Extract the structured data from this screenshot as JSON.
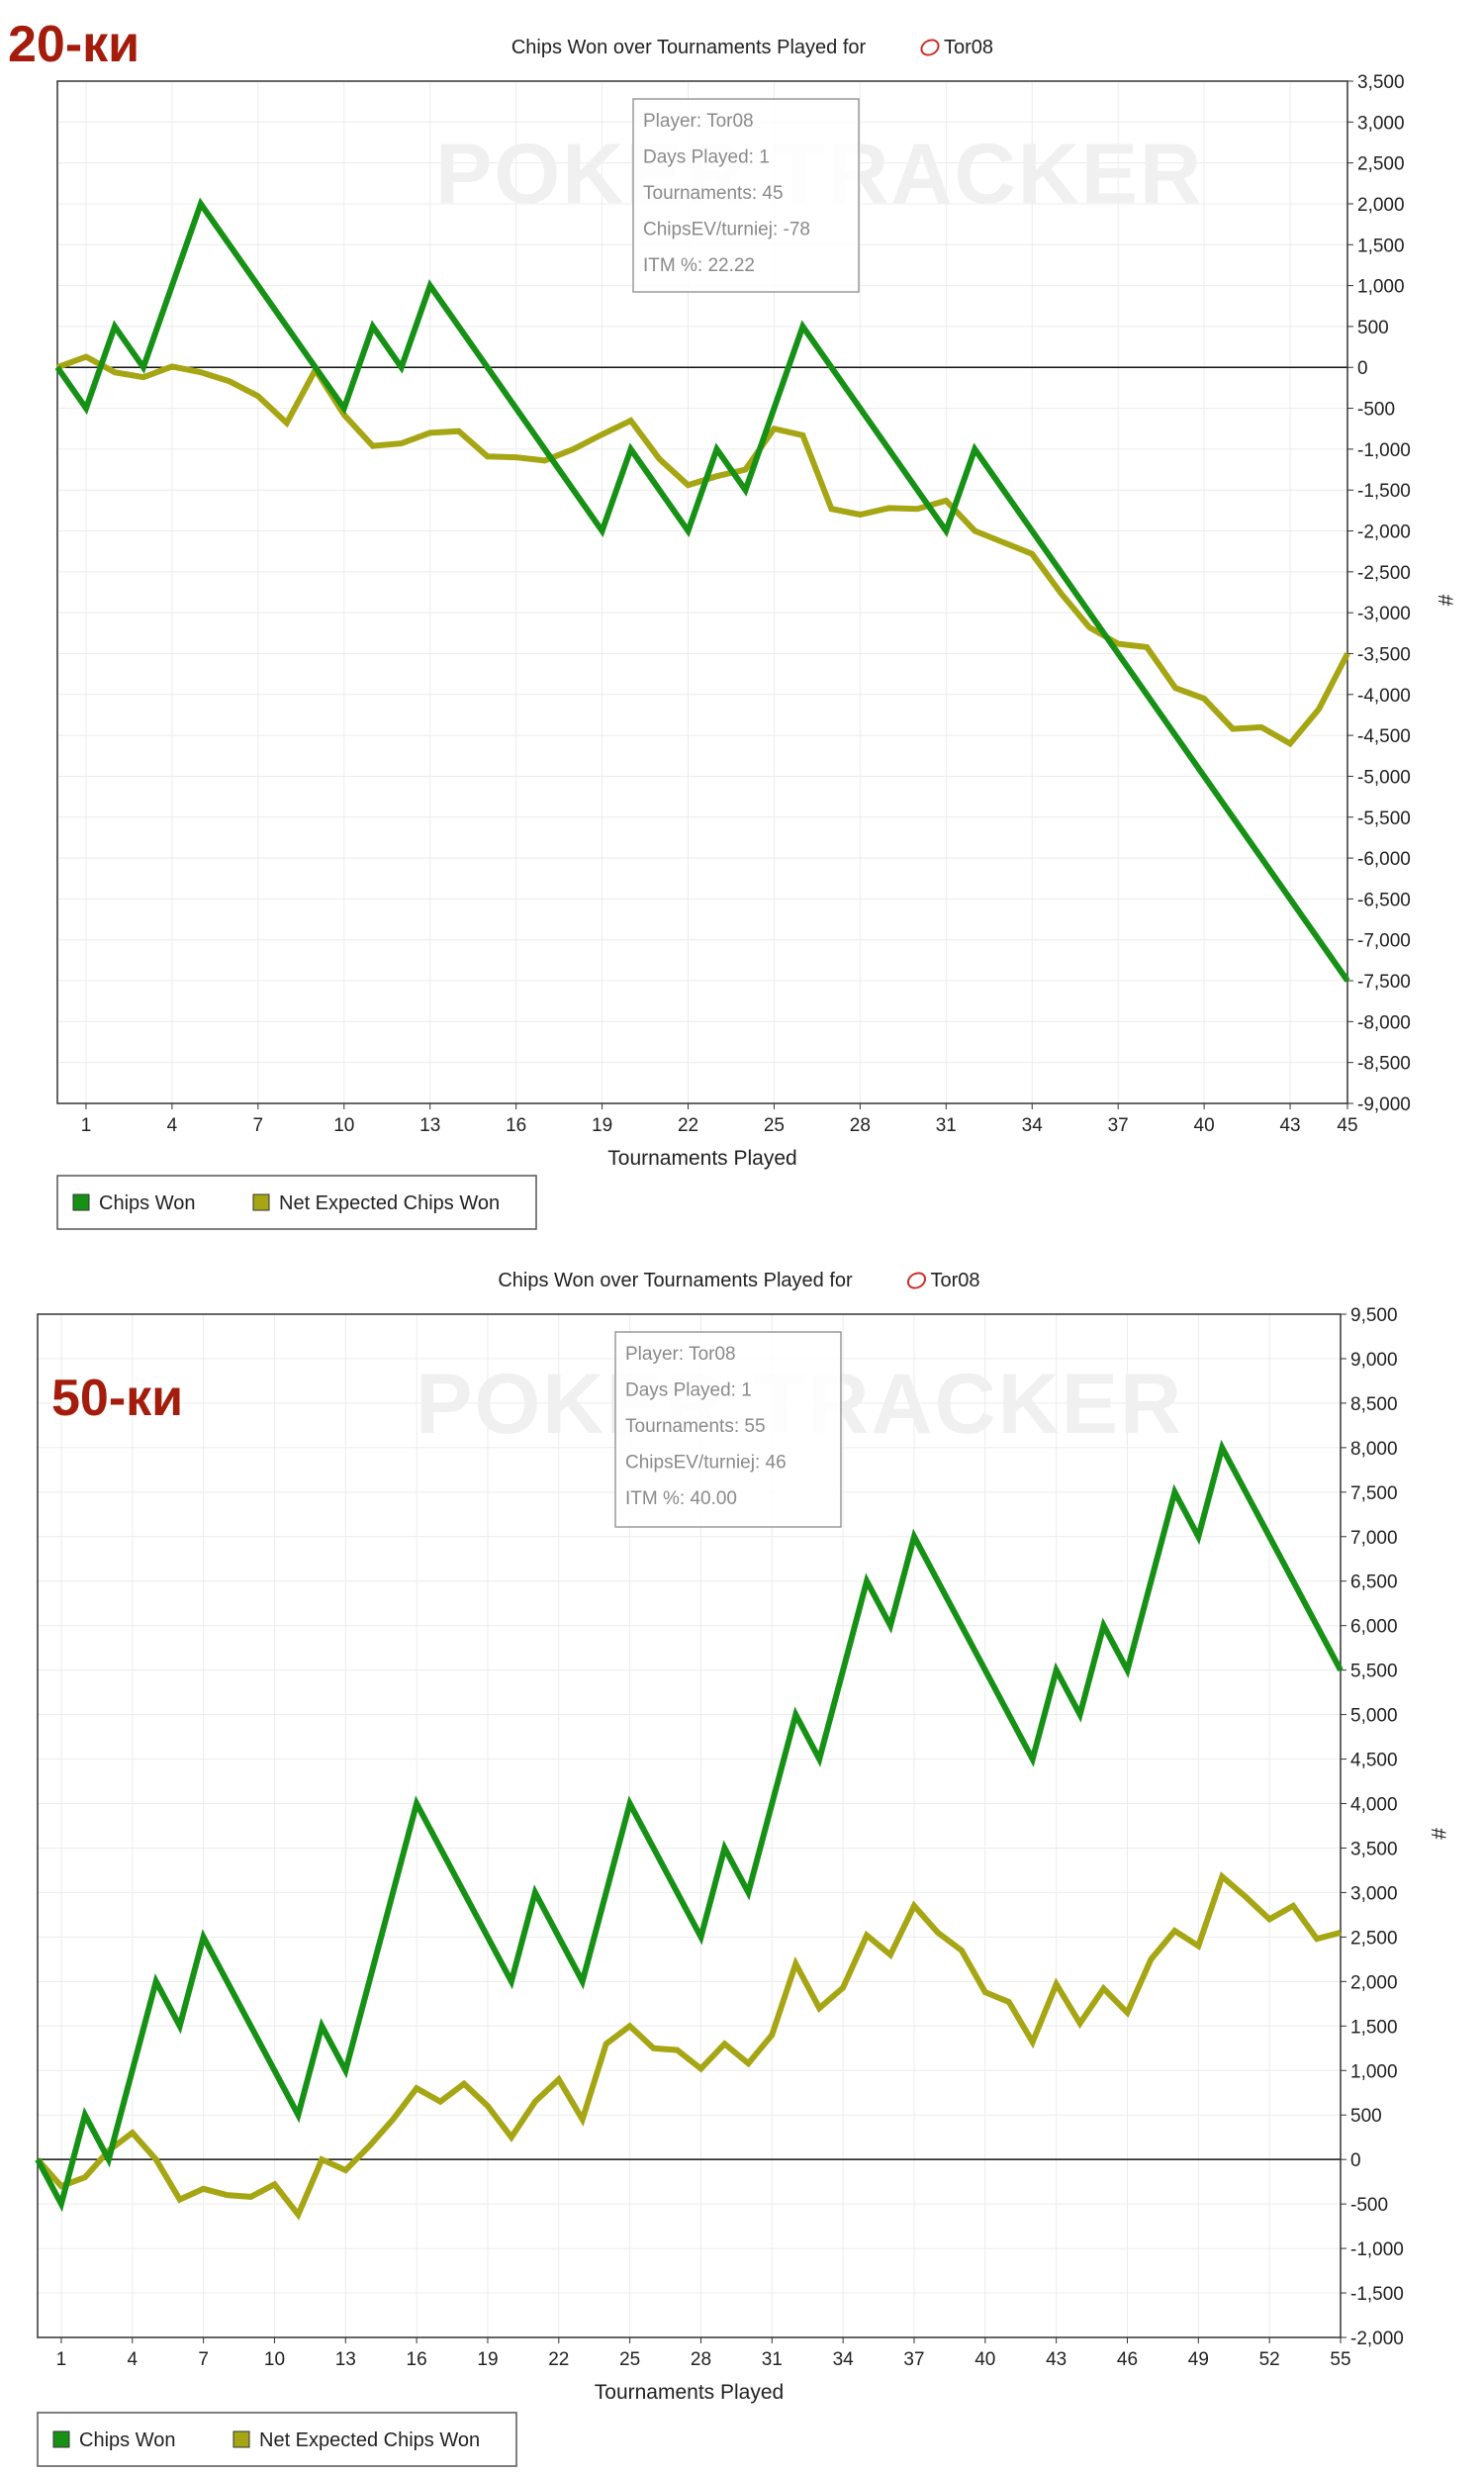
{
  "chart_data": [
    {
      "type": "line",
      "corner_label": "20-ки",
      "title": "Chips Won over Tournaments Played for",
      "player_name": "Tor08",
      "xlabel": "Tournaments Played",
      "ylabel": "#",
      "watermark": "POKER TRACKER",
      "xlim": [
        0,
        45
      ],
      "xticks": [
        1,
        4,
        7,
        10,
        13,
        16,
        19,
        22,
        25,
        28,
        31,
        34,
        37,
        40,
        43,
        45
      ],
      "ylim": [
        -9000,
        3500
      ],
      "ytick_step": 500,
      "grid": true,
      "legend_position": "bottom-left",
      "tooltip": {
        "lines": [
          "Player: Tor08",
          "Days Played: 1",
          "Tournaments: 45",
          "ChipsEV/turniej: -78",
          "ITM %: 22.22"
        ]
      },
      "series": [
        {
          "name": "Chips Won",
          "color": "#169116",
          "points": [
            [
              0,
              0
            ],
            [
              1,
              -500
            ],
            [
              2,
              500
            ],
            [
              3,
              0
            ],
            [
              5,
              2000
            ],
            [
              10,
              -500
            ],
            [
              11,
              500
            ],
            [
              12,
              0
            ],
            [
              13,
              1000
            ],
            [
              19,
              -2000
            ],
            [
              20,
              -1000
            ],
            [
              22,
              -2000
            ],
            [
              23,
              -1000
            ],
            [
              24,
              -1500
            ],
            [
              26,
              500
            ],
            [
              31,
              -2000
            ],
            [
              32,
              -1000
            ],
            [
              45,
              -7500
            ]
          ]
        },
        {
          "name": "Net Expected Chips Won",
          "color": "#a6a614",
          "points": [
            [
              0,
              0
            ],
            [
              1,
              130
            ],
            [
              2,
              -60
            ],
            [
              3,
              -120
            ],
            [
              4,
              10
            ],
            [
              5,
              -60
            ],
            [
              6,
              -170
            ],
            [
              7,
              -350
            ],
            [
              8,
              -680
            ],
            [
              9,
              -30
            ],
            [
              10,
              -580
            ],
            [
              11,
              -960
            ],
            [
              12,
              -930
            ],
            [
              13,
              -800
            ],
            [
              14,
              -780
            ],
            [
              15,
              -1090
            ],
            [
              16,
              -1100
            ],
            [
              17,
              -1140
            ],
            [
              18,
              -1000
            ],
            [
              19,
              -820
            ],
            [
              20,
              -650
            ],
            [
              21,
              -1120
            ],
            [
              22,
              -1440
            ],
            [
              23,
              -1330
            ],
            [
              24,
              -1250
            ],
            [
              25,
              -750
            ],
            [
              26,
              -830
            ],
            [
              27,
              -1730
            ],
            [
              28,
              -1800
            ],
            [
              29,
              -1720
            ],
            [
              30,
              -1730
            ],
            [
              31,
              -1630
            ],
            [
              32,
              -2000
            ],
            [
              33,
              -2140
            ],
            [
              34,
              -2280
            ],
            [
              35,
              -2760
            ],
            [
              36,
              -3180
            ],
            [
              37,
              -3380
            ],
            [
              38,
              -3420
            ],
            [
              39,
              -3920
            ],
            [
              40,
              -4050
            ],
            [
              41,
              -4420
            ],
            [
              42,
              -4400
            ],
            [
              43,
              -4600
            ],
            [
              44,
              -4180
            ],
            [
              45,
              -3500
            ]
          ]
        }
      ]
    },
    {
      "type": "line",
      "corner_label": "50-ки",
      "title": "Chips Won over Tournaments Played for",
      "player_name": "Tor08",
      "xlabel": "Tournaments Played",
      "ylabel": "#",
      "watermark": "POKER TRACKER",
      "xlim": [
        0,
        55
      ],
      "xticks": [
        1,
        4,
        7,
        10,
        13,
        16,
        19,
        22,
        25,
        28,
        31,
        34,
        37,
        40,
        43,
        46,
        49,
        52,
        55
      ],
      "ylim": [
        -2000,
        9500
      ],
      "ytick_step": 500,
      "grid": true,
      "legend_position": "bottom-left",
      "tooltip": {
        "lines": [
          "Player: Tor08",
          "Days Played: 1",
          "Tournaments: 55",
          "ChipsEV/turniej: 46",
          "ITM %: 40.00"
        ]
      },
      "series": [
        {
          "name": "Chips Won",
          "color": "#169116",
          "points": [
            [
              0,
              0
            ],
            [
              1,
              -500
            ],
            [
              2,
              500
            ],
            [
              3,
              0
            ],
            [
              5,
              2000
            ],
            [
              6,
              1500
            ],
            [
              7,
              2500
            ],
            [
              11,
              500
            ],
            [
              12,
              1500
            ],
            [
              13,
              1000
            ],
            [
              16,
              4000
            ],
            [
              20,
              2000
            ],
            [
              21,
              3000
            ],
            [
              23,
              2000
            ],
            [
              25,
              4000
            ],
            [
              28,
              2500
            ],
            [
              29,
              3500
            ],
            [
              30,
              3000
            ],
            [
              32,
              5000
            ],
            [
              33,
              4500
            ],
            [
              35,
              6500
            ],
            [
              36,
              6000
            ],
            [
              37,
              7000
            ],
            [
              42,
              4500
            ],
            [
              43,
              5500
            ],
            [
              44,
              5000
            ],
            [
              45,
              6000
            ],
            [
              46,
              5500
            ],
            [
              48,
              7500
            ],
            [
              49,
              7000
            ],
            [
              50,
              8000
            ],
            [
              55,
              5500
            ]
          ]
        },
        {
          "name": "Net Expected Chips Won",
          "color": "#a6a614",
          "points": [
            [
              0,
              0
            ],
            [
              1,
              -300
            ],
            [
              2,
              -200
            ],
            [
              3,
              100
            ],
            [
              4,
              300
            ],
            [
              5,
              0
            ],
            [
              6,
              -450
            ],
            [
              7,
              -330
            ],
            [
              8,
              -400
            ],
            [
              9,
              -420
            ],
            [
              10,
              -280
            ],
            [
              11,
              -620
            ],
            [
              12,
              0
            ],
            [
              13,
              -120
            ],
            [
              14,
              150
            ],
            [
              15,
              450
            ],
            [
              16,
              800
            ],
            [
              17,
              650
            ],
            [
              18,
              850
            ],
            [
              19,
              600
            ],
            [
              20,
              250
            ],
            [
              21,
              650
            ],
            [
              22,
              900
            ],
            [
              23,
              450
            ],
            [
              24,
              1300
            ],
            [
              25,
              1500
            ],
            [
              26,
              1250
            ],
            [
              27,
              1230
            ],
            [
              28,
              1020
            ],
            [
              29,
              1300
            ],
            [
              30,
              1080
            ],
            [
              31,
              1400
            ],
            [
              32,
              2200
            ],
            [
              33,
              1700
            ],
            [
              34,
              1930
            ],
            [
              35,
              2520
            ],
            [
              36,
              2300
            ],
            [
              37,
              2850
            ],
            [
              38,
              2550
            ],
            [
              39,
              2350
            ],
            [
              40,
              1880
            ],
            [
              41,
              1770
            ],
            [
              42,
              1320
            ],
            [
              43,
              1970
            ],
            [
              44,
              1530
            ],
            [
              45,
              1920
            ],
            [
              46,
              1650
            ],
            [
              47,
              2250
            ],
            [
              48,
              2570
            ],
            [
              49,
              2400
            ],
            [
              50,
              3180
            ],
            [
              51,
              2950
            ],
            [
              52,
              2700
            ],
            [
              53,
              2850
            ],
            [
              54,
              2480
            ],
            [
              55,
              2550
            ]
          ]
        }
      ]
    }
  ]
}
